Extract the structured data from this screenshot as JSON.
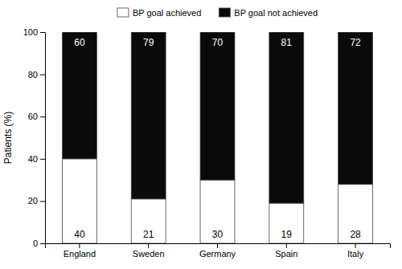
{
  "chart_data": {
    "type": "bar",
    "stacked": true,
    "categories": [
      "England",
      "Sweden",
      "Germany",
      "Spain",
      "Italy"
    ],
    "series": [
      {
        "name": "BP goal achieved",
        "color": "#ffffff",
        "values": [
          40,
          21,
          30,
          19,
          28
        ]
      },
      {
        "name": "BP goal not achieved",
        "color": "#0a0a0a",
        "values": [
          60,
          79,
          70,
          81,
          72
        ]
      }
    ],
    "ylabel": "Patients (%)",
    "ylim": [
      0,
      100
    ],
    "yticks": [
      0,
      20,
      40,
      60,
      80,
      100
    ],
    "data_labels": true,
    "grid": false,
    "legend": "top"
  }
}
